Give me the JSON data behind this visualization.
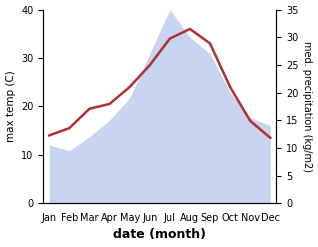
{
  "months": [
    "Jan",
    "Feb",
    "Mar",
    "Apr",
    "May",
    "Jun",
    "Jul",
    "Aug",
    "Sep",
    "Oct",
    "Nov",
    "Dec"
  ],
  "temperature": [
    14.0,
    15.5,
    19.5,
    20.5,
    24.0,
    28.5,
    34.0,
    36.0,
    33.0,
    24.0,
    17.0,
    13.5
  ],
  "precipitation": [
    10.5,
    9.5,
    12.0,
    15.0,
    19.0,
    27.0,
    35.0,
    30.0,
    27.0,
    20.0,
    15.5,
    14.0
  ],
  "temp_color": "#b03030",
  "precip_color": "#c8d4f0",
  "ylim_left": [
    0,
    40
  ],
  "ylim_right": [
    0,
    35
  ],
  "yticks_left": [
    0,
    10,
    20,
    30,
    40
  ],
  "yticks_right": [
    0,
    5,
    10,
    15,
    20,
    25,
    30,
    35
  ],
  "ylabel_left": "max temp (C)",
  "ylabel_right": "med. precipitation (kg/m2)",
  "xlabel": "date (month)",
  "fig_width": 3.18,
  "fig_height": 2.47,
  "dpi": 100
}
